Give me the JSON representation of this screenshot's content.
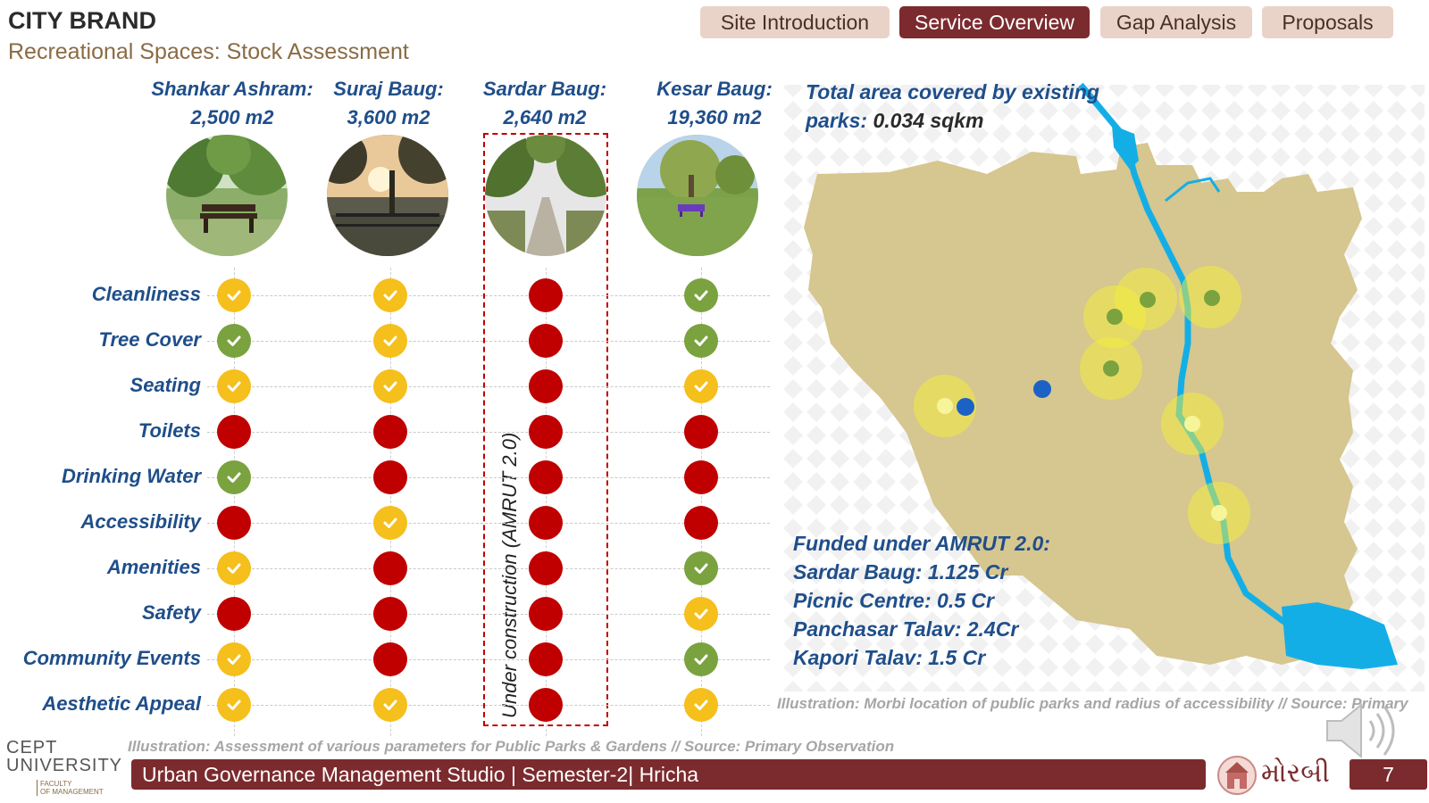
{
  "header": {
    "brand": "CITY BRAND",
    "subtitle": "Recreational Spaces: Stock Assessment"
  },
  "tabs": [
    {
      "label": "Site Introduction",
      "active": false
    },
    {
      "label": "Service Overview",
      "active": true
    },
    {
      "label": "Gap Analysis",
      "active": false
    },
    {
      "label": "Proposals",
      "active": false
    }
  ],
  "parks": [
    {
      "name": "Shankar Ashram:",
      "area": "2,500 m2"
    },
    {
      "name": "Suraj Baug:",
      "area": "3,600 m2"
    },
    {
      "name": "Sardar Baug:",
      "area": "2,640 m2"
    },
    {
      "name": "Kesar Baug:",
      "area": "19,360 m2"
    }
  ],
  "parameters": [
    "Cleanliness",
    "Tree Cover",
    "Seating",
    "Toilets",
    "Drinking Water",
    "Accessibility",
    "Amenities",
    "Safety",
    "Community Events",
    "Aesthetic Appeal"
  ],
  "ratings": [
    [
      "yellow",
      "yellow",
      "red",
      "green"
    ],
    [
      "green",
      "yellow",
      "red",
      "green"
    ],
    [
      "yellow",
      "yellow",
      "red",
      "yellow"
    ],
    [
      "red",
      "red",
      "red",
      "red"
    ],
    [
      "green",
      "red",
      "red",
      "red"
    ],
    [
      "red",
      "yellow",
      "red",
      "red"
    ],
    [
      "yellow",
      "red",
      "red",
      "green"
    ],
    [
      "red",
      "red",
      "red",
      "yellow"
    ],
    [
      "yellow",
      "red",
      "red",
      "green"
    ],
    [
      "yellow",
      "yellow",
      "red",
      "yellow"
    ]
  ],
  "construction_note": "Under construction (AMRUT 2.0)",
  "map": {
    "total_label_line1": "Total area covered by existing",
    "total_label_line2": "parks:",
    "total_value": "0.034 sqkm",
    "funded_title": "Funded under AMRUT 2.0:",
    "funded_items": [
      "Sardar Baug: 1.125 Cr",
      "Picnic Centre: 0.5 Cr",
      "Panchasar Talav: 2.4Cr",
      "Kapori Talav: 1.5 Cr"
    ]
  },
  "captions": {
    "left": "Illustration: Assessment of various parameters for Public Parks & Gardens // Source: Primary Observation",
    "right": "Illustration: Morbi location of public parks and radius of accessibility // Source: Primary"
  },
  "footer": {
    "studio": "Urban Governance Management Studio | Semester-2| Hricha",
    "city_logo_text": "મોરબી",
    "page_number": "7"
  },
  "logo": {
    "line1": "CEPT",
    "line2": "UNIVERSITY",
    "faculty_line1": "FACULTY",
    "faculty_line2": "OF MANAGEMENT"
  },
  "colors": {
    "accent": "#7b2b2e",
    "tab_inactive": "#e9d3c8",
    "heading_blue": "#1f4e8a",
    "rating_green": "#7aa23f",
    "rating_yellow": "#f5bf1c",
    "rating_red": "#c00000",
    "map_land": "#d6c68f",
    "river": "#14aee6"
  }
}
